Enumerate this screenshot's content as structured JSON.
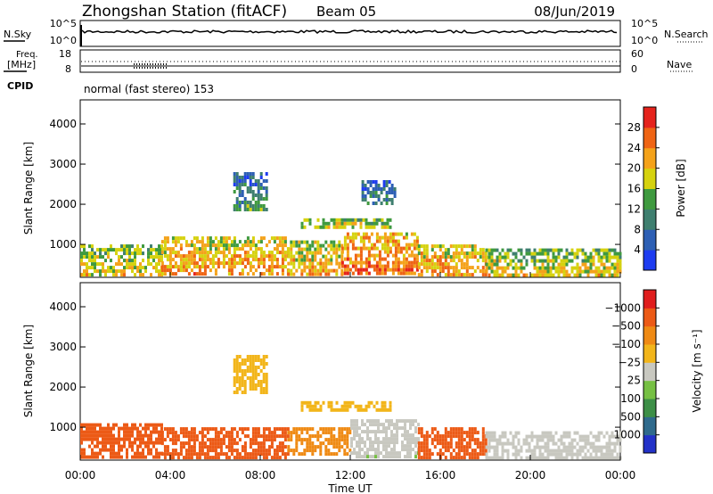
{
  "header": {
    "station_title": "Zhongshan Station (fitACF)",
    "beam": "Beam 05",
    "date": "08/Jun/2019"
  },
  "sky_panel": {
    "left_label": "N.Sky",
    "right_label": "N.Search",
    "left_ticks": [
      "10^5",
      "10^0"
    ],
    "right_ticks": [
      "10^5",
      "10^0"
    ]
  },
  "freq_panel": {
    "left_label_line1": "Freq.",
    "left_label_line2": "[MHz]",
    "left_ticks": [
      "18",
      "8"
    ],
    "right_ticks": [
      "60",
      "0"
    ],
    "right_label": "Nave",
    "cpid_label": "CPID",
    "mode_text": "normal (fast stereo) 153"
  },
  "chart_data": [
    {
      "type": "heatmap",
      "title": "",
      "ylabel": "Slant Range [km]",
      "xlabel": "",
      "ylim": [
        180,
        4600
      ],
      "yticks": [
        "1000",
        "2000",
        "3000",
        "4000"
      ],
      "colorbar_label": "Power [dB]",
      "colorbar_ticks": [
        "4",
        "8",
        "12",
        "16",
        "20",
        "24",
        "28"
      ],
      "colorbar_range": [
        0,
        32
      ],
      "colors": [
        "#1e3cf0",
        "#2d5fb4",
        "#3f7f6f",
        "#3f9a3f",
        "#d6d20f",
        "#f4a21a",
        "#ef6414",
        "#e5231c"
      ],
      "regions": [
        {
          "t0": 0.0,
          "t1": 3.6,
          "r0": 250,
          "r1": 1000,
          "v": 14
        },
        {
          "t0": 3.6,
          "t1": 9.2,
          "r0": 250,
          "r1": 1200,
          "v": 18
        },
        {
          "t0": 9.2,
          "t1": 11.6,
          "r0": 300,
          "r1": 1100,
          "v": 16
        },
        {
          "t0": 11.6,
          "t1": 15.0,
          "r0": 300,
          "r1": 1300,
          "v": 20
        },
        {
          "t0": 15.0,
          "t1": 18.0,
          "r0": 250,
          "r1": 1000,
          "v": 18
        },
        {
          "t0": 18.0,
          "t1": 24.0,
          "r0": 250,
          "r1": 900,
          "v": 14
        },
        {
          "t0": 9.8,
          "t1": 13.8,
          "r0": 1400,
          "r1": 1650,
          "v": 14
        },
        {
          "t0": 6.8,
          "t1": 8.3,
          "r0": 1900,
          "r1": 2800,
          "v": 6
        },
        {
          "t0": 12.5,
          "t1": 14.0,
          "r0": 2000,
          "r1": 2600,
          "v": 6
        }
      ]
    },
    {
      "type": "heatmap",
      "title": "",
      "ylabel": "Slant Range [km]",
      "xlabel": "Time UT",
      "ylim": [
        180,
        4600
      ],
      "yticks": [
        "1000",
        "2000",
        "3000",
        "4000"
      ],
      "xticks": [
        "00:00",
        "04:00",
        "08:00",
        "12:00",
        "16:00",
        "20:00",
        "00:00"
      ],
      "colorbar_label": "Velocity [m s⁻¹]",
      "colorbar_ticks": [
        "1000",
        "500",
        "100",
        "25",
        "−25",
        "−100",
        "−500",
        "−1000"
      ],
      "colors": [
        "#2332c8",
        "#2f6a8c",
        "#3d8f47",
        "#76c043",
        "#c8c8c0",
        "#f2b51a",
        "#ef8a14",
        "#ec5a16",
        "#e01e1e"
      ],
      "regions": [
        {
          "t0": 0.0,
          "t1": 3.6,
          "r0": 250,
          "r1": 1100,
          "v": -120
        },
        {
          "t0": 3.6,
          "t1": 9.2,
          "r0": 250,
          "r1": 1000,
          "v": -150
        },
        {
          "t0": 9.2,
          "t1": 12.0,
          "r0": 300,
          "r1": 1000,
          "v": -60
        },
        {
          "t0": 12.0,
          "t1": 15.0,
          "r0": 300,
          "r1": 1200,
          "v": 90
        },
        {
          "t0": 15.0,
          "t1": 18.0,
          "r0": 250,
          "r1": 1000,
          "v": -140
        },
        {
          "t0": 18.0,
          "t1": 24.0,
          "r0": 250,
          "r1": 900,
          "v": 40
        },
        {
          "t0": 9.8,
          "t1": 13.8,
          "r0": 1400,
          "r1": 1650,
          "v": 5
        },
        {
          "t0": 6.8,
          "t1": 8.3,
          "r0": 1900,
          "r1": 2800,
          "v": 10
        }
      ]
    }
  ]
}
